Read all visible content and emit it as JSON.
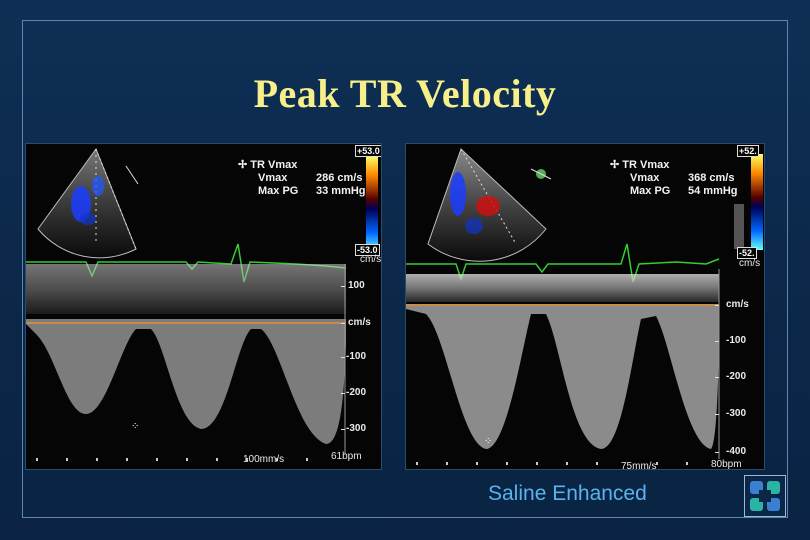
{
  "slide": {
    "title": "Peak TR Velocity",
    "caption": "Saline Enhanced"
  },
  "left": {
    "scale_top": "+53.0",
    "scale_bottom": "-53.0",
    "scale_unit": "cm/s",
    "meas_title": "TR Vmax",
    "vmax_label": "Vmax",
    "vmax_value": "286 cm/s",
    "pg_label": "Max PG",
    "pg_value": "33 mmHg",
    "ticks": [
      "100",
      "cm/s",
      "-100",
      "-200",
      "-300"
    ],
    "sweep": "100mm/s",
    "hr": "61bpm"
  },
  "right": {
    "scale_top": "+52.",
    "scale_bottom": "-52.",
    "scale_unit": "cm/s",
    "meas_title": "TR Vmax",
    "vmax_label": "Vmax",
    "vmax_value": "368 cm/s",
    "pg_label": "Max PG",
    "pg_value": "54 mmHg",
    "ticks": [
      "cm/s",
      "-100",
      "-200",
      "-300",
      "-400"
    ],
    "sweep": "75mm/s",
    "hr": "80bpm"
  },
  "colors": {
    "title": "#f7f08a",
    "caption": "#5ab2ee",
    "ecg": "#33cc33",
    "baseline": "#c98a4a"
  },
  "icons": {
    "logo": "cleveland-clinic-logo"
  }
}
